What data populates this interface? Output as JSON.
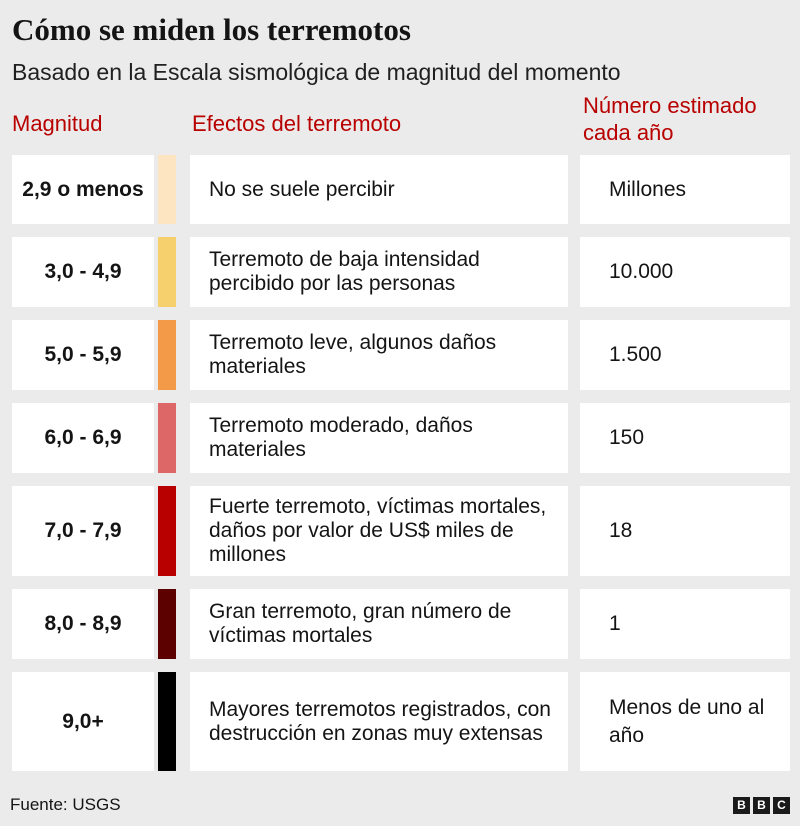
{
  "header": {
    "title": "Cómo se miden los terremotos",
    "subtitle": "Basado en la Escala sismológica de magnitud del momento"
  },
  "chart_data": {
    "type": "table",
    "columns": [
      "Magnitud",
      "Efectos del terremoto",
      "Número estimado cada año"
    ],
    "rows": [
      {
        "magnitude": "2,9 o menos",
        "color": "#fce5c0",
        "effect": "No se suele percibir",
        "frequency": "Millones"
      },
      {
        "magnitude": "3,0 - 4,9",
        "color": "#f6d06d",
        "effect": "Terremoto de baja intensidad percibido por las personas",
        "frequency": "10.000"
      },
      {
        "magnitude": "5,0 - 5,9",
        "color": "#f39a48",
        "effect": "Terremoto leve, algunos daños materiales",
        "frequency": "1.500"
      },
      {
        "magnitude": "6,0 - 6,9",
        "color": "#dc6766",
        "effect": "Terremoto moderado, daños materiales",
        "frequency": "150"
      },
      {
        "magnitude": "7,0 - 7,9",
        "color": "#b80000",
        "effect": "Fuerte terremoto, víctimas mortales, daños por valor de US$ miles de millones",
        "frequency": "18"
      },
      {
        "magnitude": "8,0 - 8,9",
        "color": "#5c0000",
        "effect": "Gran terremoto, gran número de víctimas mortales",
        "frequency": "1"
      },
      {
        "magnitude": "9,0+",
        "color": "#000000",
        "effect": "Mayores terremotos registrados, con destrucción en zonas muy extensas",
        "frequency": "Menos de uno al año"
      }
    ]
  },
  "footer": {
    "source": "Fuente: USGS",
    "logo_letters": [
      "B",
      "B",
      "C"
    ]
  }
}
